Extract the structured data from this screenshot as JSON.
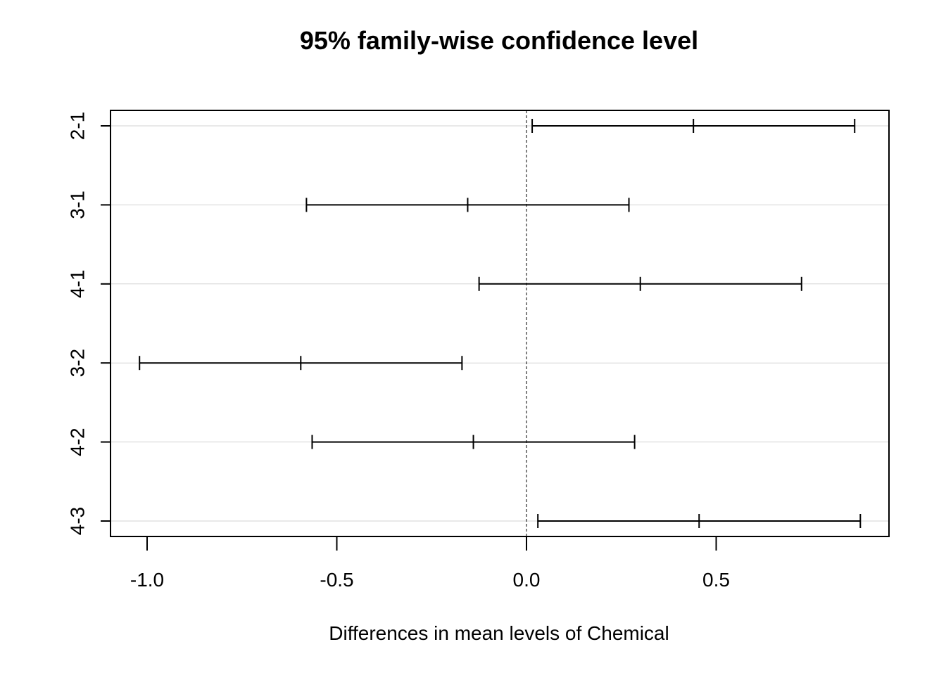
{
  "chart_data": {
    "type": "errorbar",
    "title": "95% family-wise confidence level",
    "xlabel": "Differences in mean levels of Chemical",
    "ylabel": "",
    "xlim": [
      -1.1,
      0.95
    ],
    "x_ticks": [
      -1.0,
      -0.5,
      0.0,
      0.5
    ],
    "x_tick_labels": [
      "-1.0",
      "-0.5",
      "0.0",
      "0.5"
    ],
    "reference_line": 0,
    "grid": "horizontal",
    "comparisons": [
      {
        "label": "2-1",
        "lwr": 0.015,
        "diff": 0.44,
        "upr": 0.865
      },
      {
        "label": "3-1",
        "lwr": -0.58,
        "diff": -0.155,
        "upr": 0.27
      },
      {
        "label": "4-1",
        "lwr": -0.125,
        "diff": 0.3,
        "upr": 0.725
      },
      {
        "label": "3-2",
        "lwr": -1.02,
        "diff": -0.595,
        "upr": -0.17
      },
      {
        "label": "4-2",
        "lwr": -0.565,
        "diff": -0.14,
        "upr": 0.285
      },
      {
        "label": "4-3",
        "lwr": 0.03,
        "diff": 0.455,
        "upr": 0.88
      }
    ]
  }
}
